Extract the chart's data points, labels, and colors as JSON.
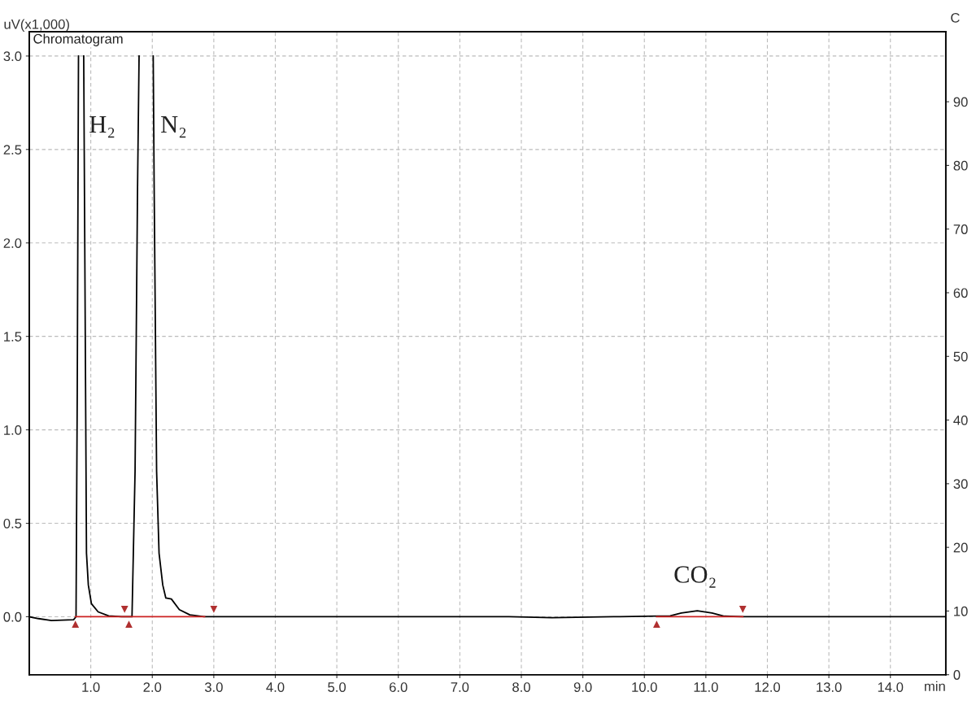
{
  "chart_data": {
    "type": "line",
    "ylabel": "uV(x1,000)",
    "y2label": "C",
    "xlabel": "min",
    "annotations": [
      "Chromatogram",
      "H₂",
      "N₂",
      "CO₂"
    ],
    "xlim": [
      0,
      14.9
    ],
    "ylim": [
      -0.31,
      3.13
    ],
    "y2lim": [
      0,
      101
    ],
    "xticks": [
      {
        "value": 1,
        "label": "1.0"
      },
      {
        "value": 2,
        "label": "2.0"
      },
      {
        "value": 3,
        "label": "3.0"
      },
      {
        "value": 4,
        "label": "4.0"
      },
      {
        "value": 5,
        "label": "5.0"
      },
      {
        "value": 6,
        "label": "6.0"
      },
      {
        "value": 7,
        "label": "7.0"
      },
      {
        "value": 8,
        "label": "8.0"
      },
      {
        "value": 9,
        "label": "9.0"
      },
      {
        "value": 10,
        "label": "10.0"
      },
      {
        "value": 11,
        "label": "11.0"
      },
      {
        "value": 12,
        "label": "12.0"
      },
      {
        "value": 13,
        "label": "13.0"
      },
      {
        "value": 14,
        "label": "14.0"
      }
    ],
    "yticks": [
      {
        "value": 0,
        "label": "0.0"
      },
      {
        "value": 0.5,
        "label": "0.5"
      },
      {
        "value": 1,
        "label": "1.0"
      },
      {
        "value": 1.5,
        "label": "1.5"
      },
      {
        "value": 2,
        "label": "2.0"
      },
      {
        "value": 2.5,
        "label": "2.5"
      },
      {
        "value": 3,
        "label": "3.0"
      }
    ],
    "y2ticks": [
      0,
      10,
      20,
      30,
      40,
      50,
      60,
      70,
      80,
      90
    ],
    "grid": true,
    "line_style": "solid",
    "series": [
      {
        "color": "#000000",
        "x": [
          0,
          0.15,
          0.36,
          0.72,
          0.76,
          0.78,
          0.8,
          0.845,
          0.885,
          0.93,
          0.96,
          1.01,
          1.12,
          1.29,
          1.5,
          1.6,
          1.67,
          1.72,
          1.76,
          1.785,
          1.9,
          2.015,
          2.03,
          2.07,
          2.11,
          2.17,
          2.22,
          2.31,
          2.44,
          2.61,
          2.84,
          7.8,
          8.5,
          9.5,
          10.42,
          10.6,
          10.86,
          11.1,
          11.3,
          11.6,
          14.9
        ],
        "values": [
          0,
          -0.01,
          -0.02,
          -0.016,
          0,
          1.2,
          3.0,
          null,
          3.0,
          0.34,
          0.17,
          0.07,
          0.026,
          0.005,
          0,
          0,
          0,
          0.78,
          2.29,
          3.0,
          null,
          3.0,
          2.31,
          0.78,
          0.34,
          0.17,
          0.1,
          0.095,
          0.038,
          0.01,
          0,
          0,
          -0.005,
          0,
          0.005,
          0.02,
          0.032,
          0.02,
          0.003,
          0,
          0
        ]
      },
      {
        "color": "#cc2222",
        "x": [
          0.75,
          2.85
        ],
        "values": [
          0,
          0
        ]
      },
      {
        "color": "#cc2222",
        "x": [
          10.2,
          11.6
        ],
        "values": [
          0,
          0
        ]
      },
      {
        "type": "scatter",
        "marker": "triangle",
        "color": "#b03030",
        "x": [
          0.75,
          1.62,
          10.2
        ],
        "values": [
          -0.04,
          -0.04,
          -0.04
        ]
      },
      {
        "type": "scatter",
        "marker": "triangle",
        "color": "#b03030",
        "x": [
          1.55,
          3.0,
          11.6
        ],
        "values": [
          0.04,
          0.04,
          0.04
        ]
      }
    ]
  }
}
